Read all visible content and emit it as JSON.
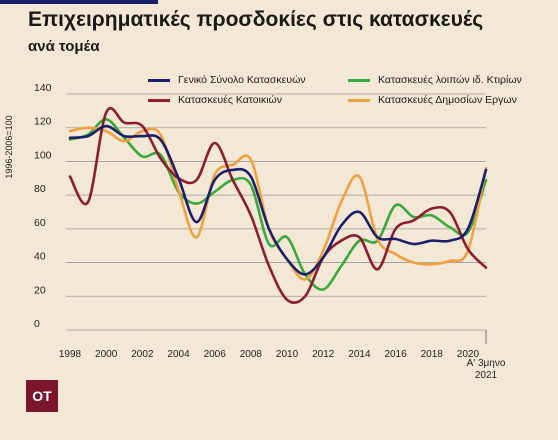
{
  "header": {
    "title": "Επιχειρηματικές προσδοκίες στις κατασκευές",
    "subtitle": "ανά τομέα"
  },
  "logo": {
    "text": "ΟΤ",
    "color": "#7a1530"
  },
  "chart_data": {
    "type": "line",
    "ylabel": "1996-2006=100",
    "xlabel": "",
    "ylim": [
      0,
      140
    ],
    "yticks": [
      0,
      20,
      40,
      60,
      80,
      100,
      120,
      140
    ],
    "xlim": [
      1998,
      2021
    ],
    "xticks": [
      1998,
      2000,
      2002,
      2004,
      2006,
      2008,
      2010,
      2012,
      2014,
      2016,
      2018,
      2020
    ],
    "last_tick_label": [
      "Α' 3μηνο",
      "2021"
    ],
    "grid": true,
    "legend_position": "top",
    "series": [
      {
        "name": "Γενικό Σύνολο Κατασκευών",
        "color": "#1a1f6b",
        "x": [
          1998,
          1999,
          2000,
          2001,
          2002,
          2003,
          2004,
          2005,
          2006,
          2007,
          2008,
          2009,
          2010,
          2011,
          2012,
          2013,
          2014,
          2015,
          2016,
          2017,
          2018,
          2019,
          2020,
          2021
        ],
        "y": [
          114,
          115,
          121,
          115,
          115,
          113,
          90,
          64,
          89,
          95,
          91,
          60,
          42,
          33,
          43,
          62,
          70,
          55,
          54,
          51,
          53,
          53,
          60,
          95
        ]
      },
      {
        "name": "Κατασκευές Κατοικιών",
        "color": "#8c1d2e",
        "x": [
          1998,
          1999,
          2000,
          2001,
          2002,
          2003,
          2004,
          2005,
          2006,
          2007,
          2008,
          2009,
          2010,
          2011,
          2012,
          2013,
          2014,
          2015,
          2016,
          2017,
          2018,
          2019,
          2020,
          2021
        ],
        "y": [
          91,
          76,
          129,
          123,
          121,
          102,
          90,
          89,
          111,
          89,
          68,
          38,
          18,
          20,
          43,
          53,
          55,
          36,
          60,
          65,
          72,
          70,
          48,
          37
        ]
      },
      {
        "name": "Κατασκευές λοιπών ιδ. Κτιρίων",
        "color": "#3aa83a",
        "x": [
          1998,
          1999,
          2000,
          2001,
          2002,
          2003,
          2004,
          2005,
          2006,
          2007,
          2008,
          2009,
          2010,
          2011,
          2012,
          2013,
          2014,
          2015,
          2016,
          2017,
          2018,
          2019,
          2020,
          2021
        ],
        "y": [
          113,
          116,
          125,
          114,
          103,
          104,
          82,
          75,
          82,
          89,
          86,
          51,
          55,
          33,
          24,
          38,
          53,
          53,
          74,
          67,
          68,
          61,
          58,
          89
        ]
      },
      {
        "name": "Κατασκευές Δημοσίων Εργων",
        "color": "#f0a040",
        "x": [
          1998,
          1999,
          2000,
          2001,
          2002,
          2003,
          2004,
          2005,
          2006,
          2007,
          2008,
          2009,
          2010,
          2011,
          2012,
          2013,
          2014,
          2015,
          2016,
          2017,
          2018,
          2019,
          2020,
          2021
        ],
        "y": [
          118,
          120,
          118,
          112,
          118,
          116,
          83,
          55,
          92,
          98,
          101,
          60,
          42,
          30,
          47,
          76,
          91,
          54,
          45,
          40,
          39,
          41,
          47,
          96
        ]
      }
    ]
  }
}
